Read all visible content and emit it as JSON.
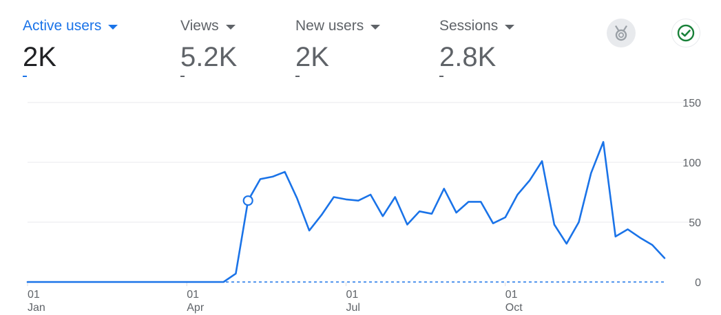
{
  "metrics": [
    {
      "label": "Active users",
      "value": "2K",
      "delta": "-",
      "active": true
    },
    {
      "label": "Views",
      "value": "5.2K",
      "delta": "-",
      "active": false
    },
    {
      "label": "New users",
      "value": "2K",
      "delta": "-",
      "active": false
    },
    {
      "label": "Sessions",
      "value": "2.8K",
      "delta": "-",
      "active": false
    }
  ],
  "icons": {
    "medal": "medal-icon",
    "check": "check-circle-icon"
  },
  "colors": {
    "accent": "#1a73e8",
    "text_primary": "#202124",
    "text_secondary": "#5f6368",
    "grid": "#e8eaed",
    "check_green": "#188038"
  },
  "chart_data": {
    "type": "line",
    "title": "",
    "xlabel": "",
    "ylabel": "",
    "ylim": [
      0,
      150
    ],
    "y_ticks": [
      "0",
      "50",
      "100",
      "150"
    ],
    "y_tick_values": [
      0,
      50,
      100,
      150
    ],
    "x_ticks": [
      {
        "day": "01",
        "month": "Jan",
        "index": 0
      },
      {
        "day": "01",
        "month": "Apr",
        "index": 13
      },
      {
        "day": "01",
        "month": "Jul",
        "index": 26
      },
      {
        "day": "01",
        "month": "Oct",
        "index": 39
      }
    ],
    "grid": true,
    "highlight_index": 18,
    "series": [
      {
        "name": "",
        "values": [
          0,
          0,
          0,
          0,
          0,
          0,
          0,
          0,
          0,
          0,
          0,
          0,
          0,
          0,
          0,
          0,
          0,
          7,
          68,
          86,
          88,
          92,
          70,
          43,
          56,
          71,
          69,
          68,
          73,
          55,
          71,
          48,
          59,
          57,
          78,
          58,
          67,
          67,
          49,
          54,
          73,
          85,
          101,
          48,
          32,
          50,
          91,
          117,
          38,
          44,
          37,
          31,
          20
        ]
      }
    ],
    "comparison_line_value": 0
  }
}
